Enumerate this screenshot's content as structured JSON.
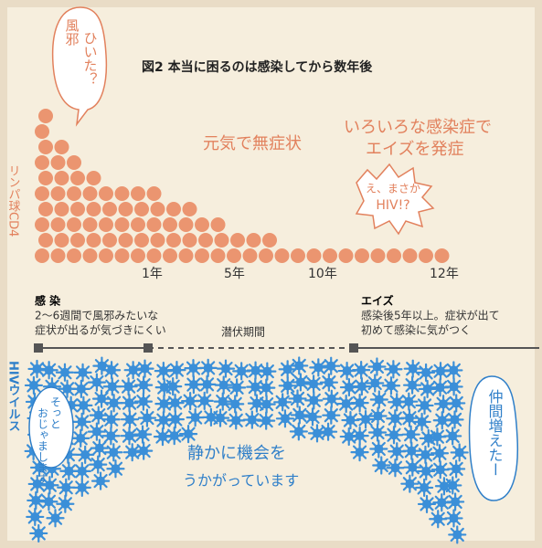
{
  "header": {
    "title": "図2 本当に困るのは感染してから数年後"
  },
  "bubble_cold": {
    "line1": "風邪",
    "line2": "ひいた？"
  },
  "bubble_hiv": {
    "line1": "え、まさか",
    "line2": "HIV!?"
  },
  "bubble_sneak": {
    "line1": "そっと",
    "line2": "おじゃまします"
  },
  "bubble_more": "仲間増えたー",
  "annotations": {
    "asymptomatic": "元気で無症状",
    "diseases_line1": "いろいろな感染症で",
    "diseases_line2": "エイズを発症",
    "waiting_line1": "静かに機会を",
    "waiting_line2": "うかがっています"
  },
  "labels": {
    "lymphocyte": "リンパ球CD4",
    "virus": "HIVウイルス"
  },
  "timeline": {
    "years": [
      "1年",
      "5年",
      "10年",
      "12年"
    ],
    "infection": {
      "title": "感 染",
      "line1": "2〜6週間で風邪みたいな",
      "line2": "症状が出るが気づきにくい"
    },
    "latency": "潜伏期間",
    "aids": {
      "title": "エイズ",
      "line1": "感染後5年以上。症状が出て",
      "line2": "初めて感染に気がつく"
    }
  }
}
